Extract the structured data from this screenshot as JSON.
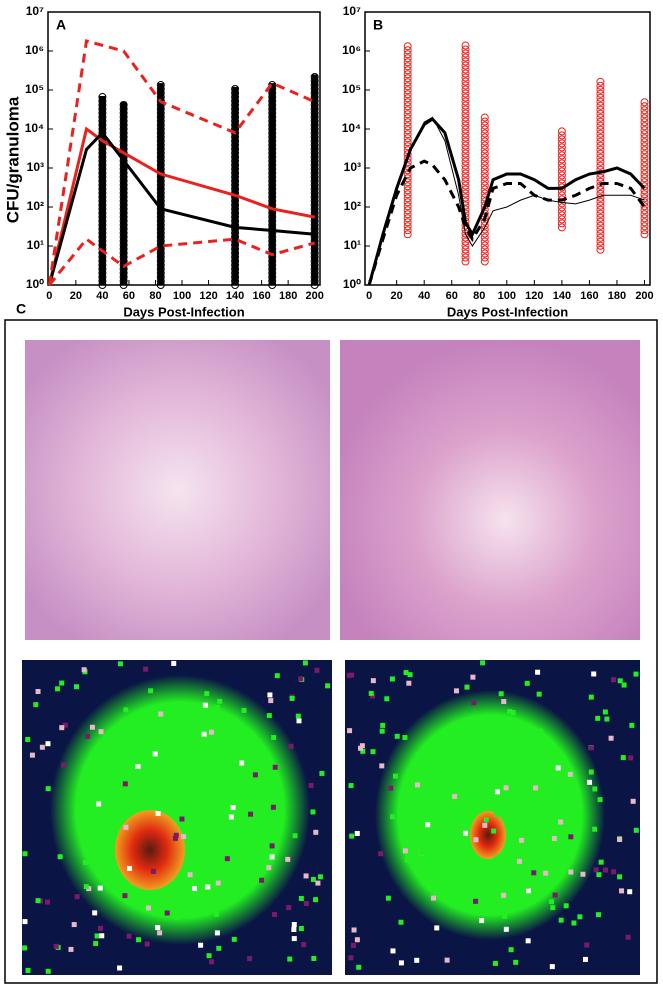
{
  "charts": [
    {
      "type": "line",
      "label": "A",
      "xlabel": "Days Post-Infection",
      "ylabel": "CFU/granuloma",
      "log_y": true,
      "xlim": [
        -1,
        204
      ],
      "ylim": [
        1,
        10000000
      ],
      "xticks": [
        0,
        20,
        40,
        60,
        80,
        100,
        120,
        140,
        160,
        180,
        200
      ],
      "yticks": [
        {
          "value": 1,
          "label": "10⁰"
        },
        {
          "value": 10,
          "label": "10¹"
        },
        {
          "value": 100,
          "label": "10²"
        },
        {
          "value": 1000,
          "label": "10³"
        },
        {
          "value": 10000,
          "label": "10⁴"
        },
        {
          "value": 100000,
          "label": "10⁵"
        },
        {
          "value": 1000000,
          "label": "10⁶"
        },
        {
          "value": 10000000,
          "label": "10⁷"
        }
      ],
      "series": [
        {
          "color": "#e8231e",
          "dash": false,
          "width": 3,
          "x": [
            0,
            28,
            40,
            84,
            140,
            168,
            200
          ],
          "values": [
            1,
            10000,
            5000,
            700,
            200,
            90,
            55
          ]
        },
        {
          "color": "#000000",
          "dash": false,
          "width": 3,
          "x": [
            0,
            28,
            40,
            84,
            140,
            168,
            200
          ],
          "values": [
            1,
            3000,
            8000,
            90,
            30,
            25,
            20
          ]
        },
        {
          "color": "#e8231e",
          "dash": true,
          "width": 3,
          "x": [
            0,
            28,
            56,
            84,
            140,
            168,
            200
          ],
          "values": [
            1,
            1800000,
            1000000,
            50000,
            8000,
            150000,
            50000
          ]
        },
        {
          "color": "#e8231e",
          "dash": true,
          "width": 3,
          "x": [
            0,
            28,
            56,
            84,
            140,
            168,
            200
          ],
          "values": [
            1,
            15,
            3,
            10,
            15,
            6,
            12
          ]
        }
      ],
      "ranges": {
        "color": "#000000",
        "x": [
          40,
          56,
          84,
          140,
          168,
          200
        ],
        "low": [
          1,
          1,
          1,
          1,
          1,
          1
        ],
        "high": [
          70000,
          50000,
          150000,
          120000,
          150000,
          250000
        ]
      }
    },
    {
      "type": "line",
      "label": "B",
      "xlabel": "Days Post-Infection",
      "log_y": true,
      "xlim": [
        -3,
        204
      ],
      "ylim": [
        1,
        10000000
      ],
      "xticks": [
        0,
        20,
        40,
        60,
        80,
        100,
        120,
        140,
        160,
        180,
        200
      ],
      "yticks": [
        {
          "value": 1,
          "label": "10⁰"
        },
        {
          "value": 10,
          "label": "10¹"
        },
        {
          "value": 100,
          "label": "10²"
        },
        {
          "value": 1000,
          "label": "10³"
        },
        {
          "value": 10000,
          "label": "10⁴"
        },
        {
          "value": 100000,
          "label": "10⁵"
        },
        {
          "value": 1000000,
          "label": "10⁶"
        },
        {
          "value": 10000000,
          "label": "10⁷"
        }
      ],
      "series": [
        {
          "color": "#000000",
          "dash": false,
          "width": 3,
          "x": [
            0,
            10,
            20,
            30,
            40,
            46,
            55,
            65,
            70,
            75,
            84,
            90,
            100,
            110,
            120,
            130,
            140,
            150,
            160,
            170,
            180,
            190,
            200
          ],
          "values": [
            1,
            20,
            300,
            3000,
            13000,
            18000,
            8000,
            500,
            40,
            20,
            100,
            500,
            700,
            700,
            500,
            300,
            300,
            500,
            700,
            800,
            1000,
            700,
            300
          ]
        },
        {
          "color": "#000000",
          "dash": true,
          "width": 3,
          "x": [
            0,
            10,
            20,
            30,
            40,
            46,
            55,
            65,
            70,
            75,
            84,
            90,
            100,
            110,
            120,
            130,
            140,
            150,
            160,
            170,
            180,
            190,
            200
          ],
          "values": [
            1,
            15,
            200,
            1000,
            1500,
            1200,
            500,
            100,
            30,
            15,
            50,
            300,
            400,
            400,
            200,
            150,
            150,
            200,
            300,
            400,
            400,
            300,
            100
          ]
        },
        {
          "color": "#000000",
          "dash": false,
          "width": 1,
          "x": [
            0,
            10,
            20,
            30,
            40,
            46,
            55,
            65,
            70,
            75,
            84,
            90,
            100,
            110,
            120,
            130,
            140,
            150,
            160,
            170,
            180,
            190,
            200
          ],
          "values": [
            1,
            20,
            300,
            3000,
            15000,
            20000,
            5000,
            200,
            20,
            10,
            30,
            80,
            100,
            150,
            200,
            150,
            130,
            120,
            150,
            200,
            200,
            200,
            150
          ]
        }
      ],
      "ranges": {
        "color": "#e8231e",
        "x": [
          28,
          70,
          84,
          140,
          168,
          200
        ],
        "low": [
          20,
          4,
          4,
          30,
          8,
          20
        ],
        "high": [
          1500000,
          1500000,
          20000,
          10000,
          200000,
          60000
        ]
      }
    }
  ],
  "panel_c": {
    "label": "C"
  }
}
